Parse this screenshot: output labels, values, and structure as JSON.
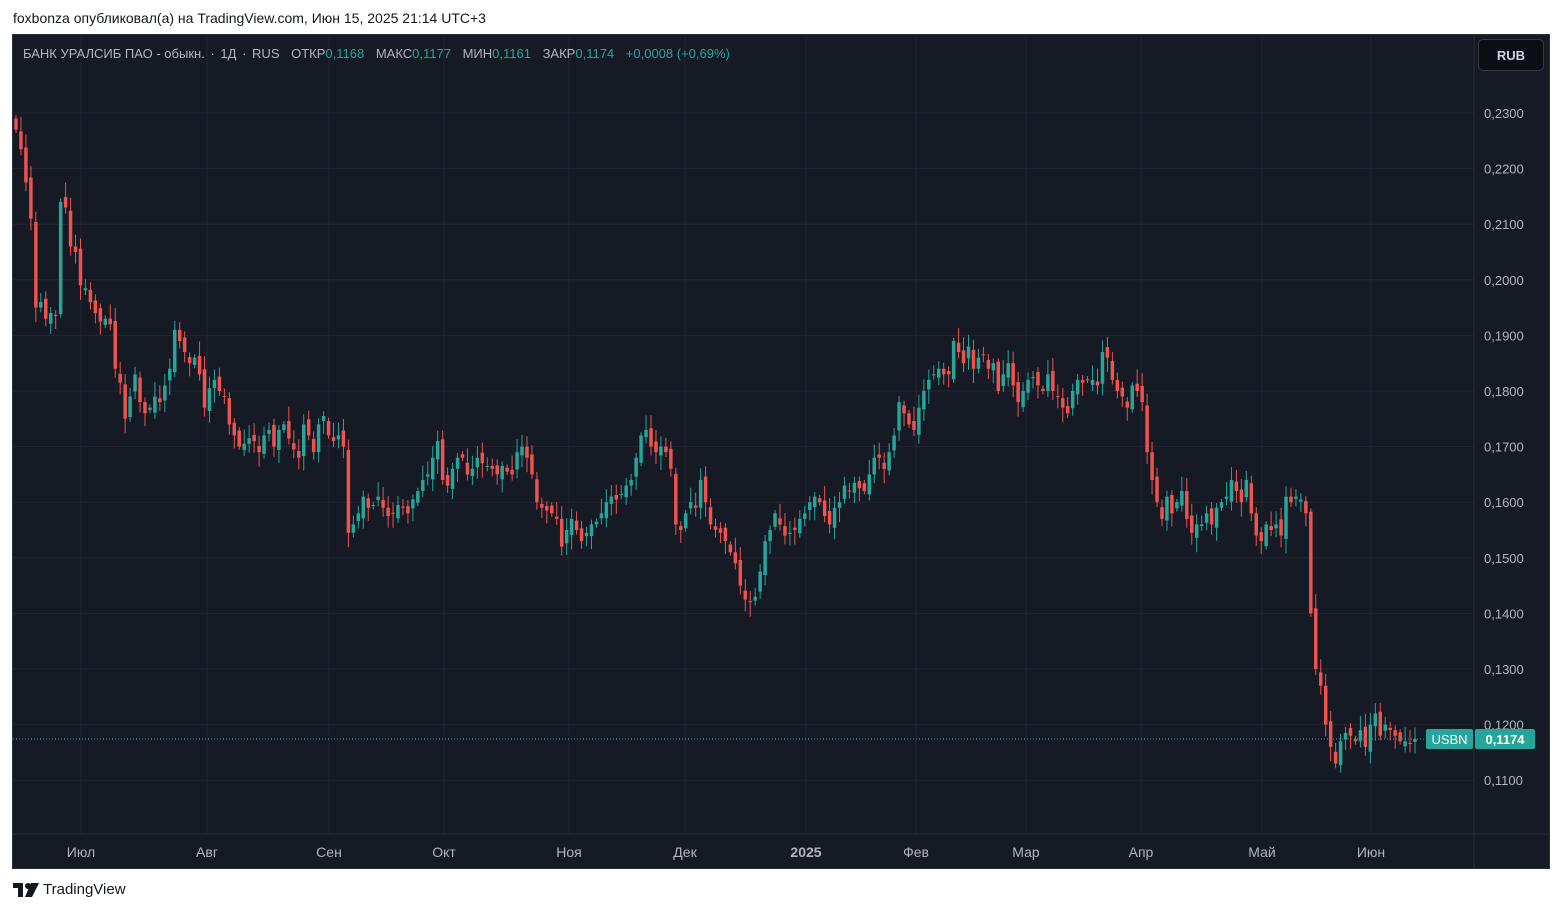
{
  "header": {
    "publisher_line": "foxbonza опубликовал(а) на TradingView.com, Июн 15, 2025 21:14 UTC+3"
  },
  "legend": {
    "symbol_title": "БАНК УРАЛСИБ ПАО - обыкн.",
    "interval": "1Д",
    "exchange": "RUS",
    "open_label": "ОТКР",
    "open_value": "0,1168",
    "high_label": "МАКС",
    "high_value": "0,1177",
    "low_label": "МИН",
    "low_value": "0,1161",
    "close_label": "ЗАКР",
    "close_value": "0,1174",
    "change": "+0,0008 (+0,69%)"
  },
  "currency_button": "RUB",
  "price_tag": {
    "ticker": "USBN",
    "value": "0,1174"
  },
  "footer": {
    "brand": "TradingView"
  },
  "colors": {
    "background": "#161a25",
    "grid": "#232632",
    "up": "#26a69a",
    "down": "#ef5350",
    "text": "#b2b5be"
  },
  "chart_data": {
    "type": "candlestick",
    "y_axis_ticks": [
      "0,2300",
      "0,2200",
      "0,2100",
      "0,2000",
      "0,1900",
      "0,1800",
      "0,1700",
      "0,1600",
      "0,1500",
      "0,1400",
      "0,1300",
      "0,1200",
      "0,1100"
    ],
    "x_axis_ticks": [
      "Июл",
      "Авг",
      "Сен",
      "Окт",
      "Ноя",
      "Дек",
      "2025",
      "Фев",
      "Мар",
      "Апр",
      "Май",
      "Июн"
    ],
    "ylim": [
      0.1002,
      0.2399
    ],
    "last_price": 0.1174,
    "close_series": [
      0.227,
      0.2235,
      0.2175,
      0.211,
      0.195,
      0.196,
      0.193,
      0.194,
      0.1935,
      0.214,
      0.213,
      0.206,
      0.205,
      0.199,
      0.1985,
      0.196,
      0.194,
      0.1925,
      0.193,
      0.192,
      0.184,
      0.1815,
      0.175,
      0.179,
      0.183,
      0.178,
      0.176,
      0.177,
      0.179,
      0.178,
      0.181,
      0.184,
      0.191,
      0.189,
      0.187,
      0.185,
      0.186,
      0.183,
      0.177,
      0.1805,
      0.182,
      0.18,
      0.179,
      0.174,
      0.172,
      0.17,
      0.1705,
      0.1715,
      0.171,
      0.169,
      0.172,
      0.173,
      0.17,
      0.173,
      0.174,
      0.1715,
      0.1695,
      0.168,
      0.174,
      0.172,
      0.169,
      0.174,
      0.1755,
      0.172,
      0.171,
      0.172,
      0.17,
      0.1545,
      0.156,
      0.158,
      0.161,
      0.159,
      0.1595,
      0.161,
      0.159,
      0.1575,
      0.158,
      0.1595,
      0.159,
      0.158,
      0.1605,
      0.162,
      0.164,
      0.165,
      0.168,
      0.171,
      0.164,
      0.163,
      0.166,
      0.168,
      0.168,
      0.165,
      0.166,
      0.168,
      0.167,
      0.1665,
      0.166,
      0.165,
      0.1665,
      0.1655,
      0.165,
      0.169,
      0.17,
      0.168,
      0.165,
      0.16,
      0.159,
      0.1585,
      0.158,
      0.157,
      0.152,
      0.155,
      0.157,
      0.155,
      0.153,
      0.1545,
      0.156,
      0.1565,
      0.158,
      0.16,
      0.161,
      0.1605,
      0.1615,
      0.163,
      0.164,
      0.168,
      0.172,
      0.173,
      0.17,
      0.169,
      0.17,
      0.169,
      0.166,
      0.156,
      0.155,
      0.158,
      0.16,
      0.159,
      0.164,
      0.16,
      0.156,
      0.155,
      0.1545,
      0.153,
      0.151,
      0.149,
      0.145,
      0.1425,
      0.142,
      0.143,
      0.1475,
      0.153,
      0.155,
      0.158,
      0.156,
      0.154,
      0.1545,
      0.155,
      0.157,
      0.158,
      0.16,
      0.161,
      0.16,
      0.1575,
      0.156,
      0.159,
      0.16,
      0.163,
      0.162,
      0.1635,
      0.1625,
      0.162,
      0.165,
      0.168,
      0.168,
      0.166,
      0.169,
      0.172,
      0.178,
      0.176,
      0.174,
      0.173,
      0.177,
      0.18,
      0.182,
      0.183,
      0.184,
      0.183,
      0.183,
      0.189,
      0.187,
      0.185,
      0.188,
      0.184,
      0.186,
      0.1865,
      0.184,
      0.185,
      0.18,
      0.183,
      0.185,
      0.181,
      0.178,
      0.18,
      0.182,
      0.1825,
      0.181,
      0.18,
      0.183,
      0.18,
      0.179,
      0.177,
      0.176,
      0.18,
      0.182,
      0.1815,
      0.182,
      0.182,
      0.181,
      0.187,
      0.186,
      0.182,
      0.18,
      0.179,
      0.177,
      0.181,
      0.18,
      0.178,
      0.169,
      0.164,
      0.16,
      0.157,
      0.161,
      0.158,
      0.16,
      0.162,
      0.157,
      0.1545,
      0.156,
      0.156,
      0.158,
      0.156,
      0.159,
      0.16,
      0.161,
      0.164,
      0.162,
      0.16,
      0.164,
      0.158,
      0.154,
      0.153,
      0.156,
      0.155,
      0.156,
      0.154,
      0.161,
      0.16,
      0.161,
      0.1605,
      0.158,
      0.14,
      0.13,
      0.127,
      0.12,
      0.116,
      0.113,
      0.117,
      0.1185,
      0.118,
      0.117,
      0.119,
      0.116,
      0.12,
      0.122,
      0.118,
      0.12,
      0.119,
      0.118,
      0.117,
      0.117,
      0.1166,
      0.1174
    ]
  }
}
